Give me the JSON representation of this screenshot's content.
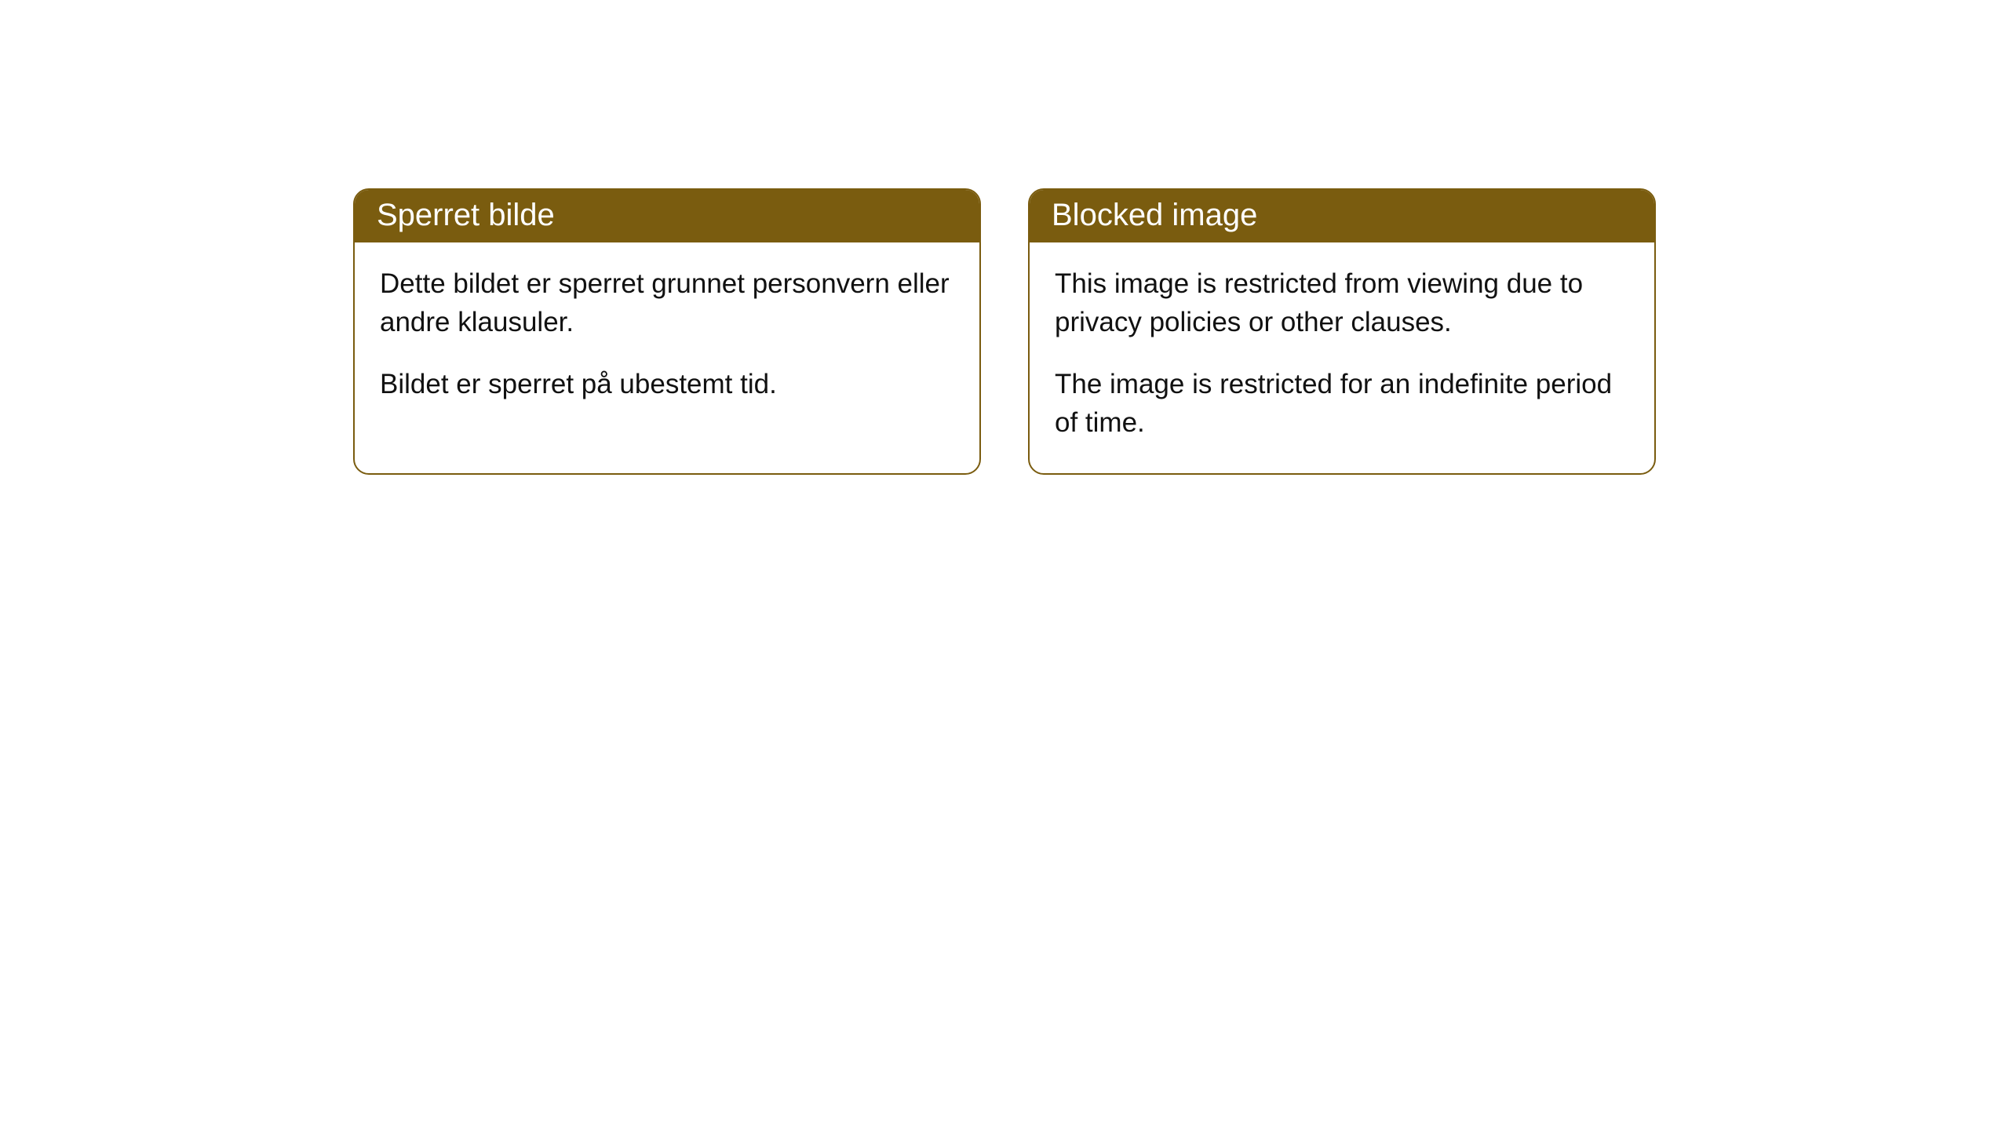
{
  "cards": [
    {
      "header": "Sperret bilde",
      "paragraph1": "Dette bildet er sperret grunnet personvern eller andre klausuler.",
      "paragraph2": "Bildet er sperret på ubestemt tid."
    },
    {
      "header": "Blocked image",
      "paragraph1": "This image is restricted from viewing due to privacy policies or other clauses.",
      "paragraph2": "The image is restricted for an indefinite period of time."
    }
  ],
  "colors": {
    "header_bg": "#7a5c0f",
    "header_text": "#ffffff",
    "border": "#7a5c0f",
    "body_bg": "#ffffff",
    "body_text": "#111111"
  },
  "typography": {
    "header_fontsize": 40,
    "body_fontsize": 35
  },
  "layout": {
    "border_radius": 20,
    "card_gap": 60
  }
}
